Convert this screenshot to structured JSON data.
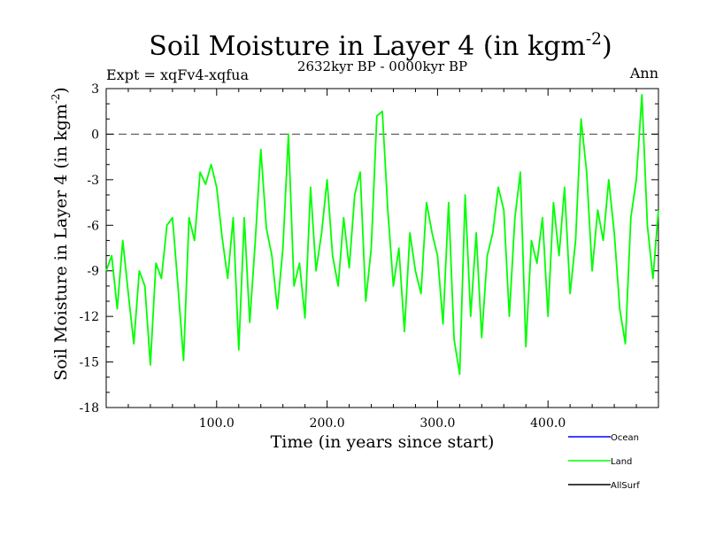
{
  "chart_data": {
    "type": "line",
    "title": {
      "main": "Soil Moisture in Layer 4 (in kgm",
      "unit_sup": "-2",
      "close": ")"
    },
    "subtitle": "2632kyr BP - 0000kyr BP",
    "expt_label": "Expt = xqFv4-xqfua",
    "season_label": "Ann",
    "xlabel": "Time (in years since start)",
    "ylabel": {
      "main": "Soil Moisture in Layer 4 (in kgm",
      "unit_sup": "-2",
      "close": ")"
    },
    "xlim": [
      0,
      500
    ],
    "ylim": [
      -18,
      3
    ],
    "x_ticks": [
      {
        "value": 100,
        "label": "100.0"
      },
      {
        "value": 200,
        "label": "200.0"
      },
      {
        "value": 300,
        "label": "300.0"
      },
      {
        "value": 400,
        "label": "400.0"
      }
    ],
    "y_ticks": [
      {
        "value": 3,
        "label": "3"
      },
      {
        "value": 0,
        "label": "0"
      },
      {
        "value": -3,
        "label": "-3"
      },
      {
        "value": -6,
        "label": "-6"
      },
      {
        "value": -9,
        "label": "-9"
      },
      {
        "value": -12,
        "label": "-12"
      },
      {
        "value": -15,
        "label": "-15"
      },
      {
        "value": -18,
        "label": "-18"
      }
    ],
    "reference_line": {
      "y": 0,
      "style": "dashed",
      "color": "#555555"
    },
    "legend": {
      "placement": "bottom-right",
      "entries": [
        {
          "name": "Ocean",
          "color": "#0000ff"
        },
        {
          "name": "Land",
          "color": "#00ff00"
        },
        {
          "name": "AllSurf",
          "color": "#000000"
        }
      ]
    },
    "series": [
      {
        "name": "Land",
        "color": "#00ff00",
        "x": [
          0,
          5,
          10,
          15,
          20,
          25,
          30,
          35,
          40,
          45,
          50,
          55,
          60,
          65,
          70,
          75,
          80,
          85,
          90,
          95,
          100,
          105,
          110,
          115,
          120,
          125,
          130,
          135,
          140,
          145,
          150,
          155,
          160,
          165,
          170,
          175,
          180,
          185,
          190,
          195,
          200,
          205,
          210,
          215,
          220,
          225,
          230,
          235,
          240,
          245,
          250,
          255,
          260,
          265,
          270,
          275,
          280,
          285,
          290,
          295,
          300,
          305,
          310,
          315,
          320,
          325,
          330,
          335,
          340,
          345,
          350,
          355,
          360,
          365,
          370,
          375,
          380,
          385,
          390,
          395,
          400,
          405,
          410,
          415,
          420,
          425,
          430,
          435,
          440,
          445,
          450,
          455,
          460,
          465,
          470,
          475,
          480,
          485,
          490,
          495,
          500
        ],
        "y": [
          -9,
          -8,
          -11.5,
          -7,
          -10.5,
          -13.8,
          -9,
          -10,
          -15.2,
          -8.5,
          -9.5,
          -6,
          -5.5,
          -10,
          -14.9,
          -5.5,
          -7,
          -2.5,
          -3.3,
          -2,
          -3.5,
          -6.8,
          -9.5,
          -5.5,
          -14.2,
          -5.5,
          -12.4,
          -7,
          -1,
          -6.2,
          -8,
          -11.5,
          -7.5,
          0,
          -10,
          -8.5,
          -12.1,
          -3.5,
          -9,
          -6.5,
          -3,
          -8,
          -10,
          -5.5,
          -8.8,
          -4,
          -2.5,
          -11,
          -7.5,
          1.2,
          1.5,
          -5,
          -10,
          -7.5,
          -13,
          -6.5,
          -9,
          -10.5,
          -4.5,
          -6.5,
          -8,
          -12.5,
          -4.5,
          -13.5,
          -15.8,
          -4,
          -12,
          -6.5,
          -13.4,
          -8,
          -6.5,
          -3.5,
          -5,
          -12,
          -5.5,
          -2.5,
          -14,
          -7,
          -8.5,
          -5.5,
          -12,
          -4.5,
          -8,
          -3.5,
          -10.5,
          -7,
          1,
          -2.5,
          -9,
          -5,
          -7,
          -3,
          -6.5,
          -11.5,
          -13.8,
          -5.5,
          -3,
          2.6,
          -6,
          -9.5,
          -5
        ]
      }
    ]
  }
}
